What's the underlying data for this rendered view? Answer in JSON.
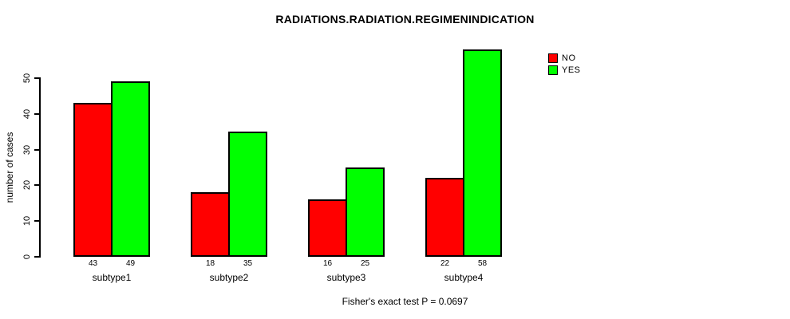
{
  "title": "RADIATIONS.RADIATION.REGIMENINDICATION",
  "caption": "Fisher's exact test P = 0.0697",
  "colors": {
    "no": "#ff0000",
    "yes": "#00ff00",
    "axis": "#000000",
    "background": "#ffffff"
  },
  "legend": {
    "position": "top-right",
    "items": [
      {
        "label": "NO",
        "color": "#ff0000"
      },
      {
        "label": "YES",
        "color": "#00ff00"
      }
    ]
  },
  "chart_data": {
    "type": "bar",
    "grouped": true,
    "title": "RADIATIONS.RADIATION.REGIMENINDICATION",
    "xlabel": "",
    "ylabel": "number of cases",
    "categories": [
      "subtype1",
      "subtype2",
      "subtype3",
      "subtype4"
    ],
    "series": [
      {
        "name": "NO",
        "color": "#ff0000",
        "values": [
          43,
          18,
          16,
          22
        ]
      },
      {
        "name": "YES",
        "color": "#00ff00",
        "values": [
          49,
          35,
          25,
          58
        ]
      }
    ],
    "bar_value_labels_shown": true,
    "yticks": [
      0,
      10,
      20,
      30,
      40,
      50
    ],
    "ylim": [
      0,
      50
    ],
    "grid": false,
    "legend_position": "top-right",
    "annotation": "Fisher's exact test P = 0.0697"
  }
}
